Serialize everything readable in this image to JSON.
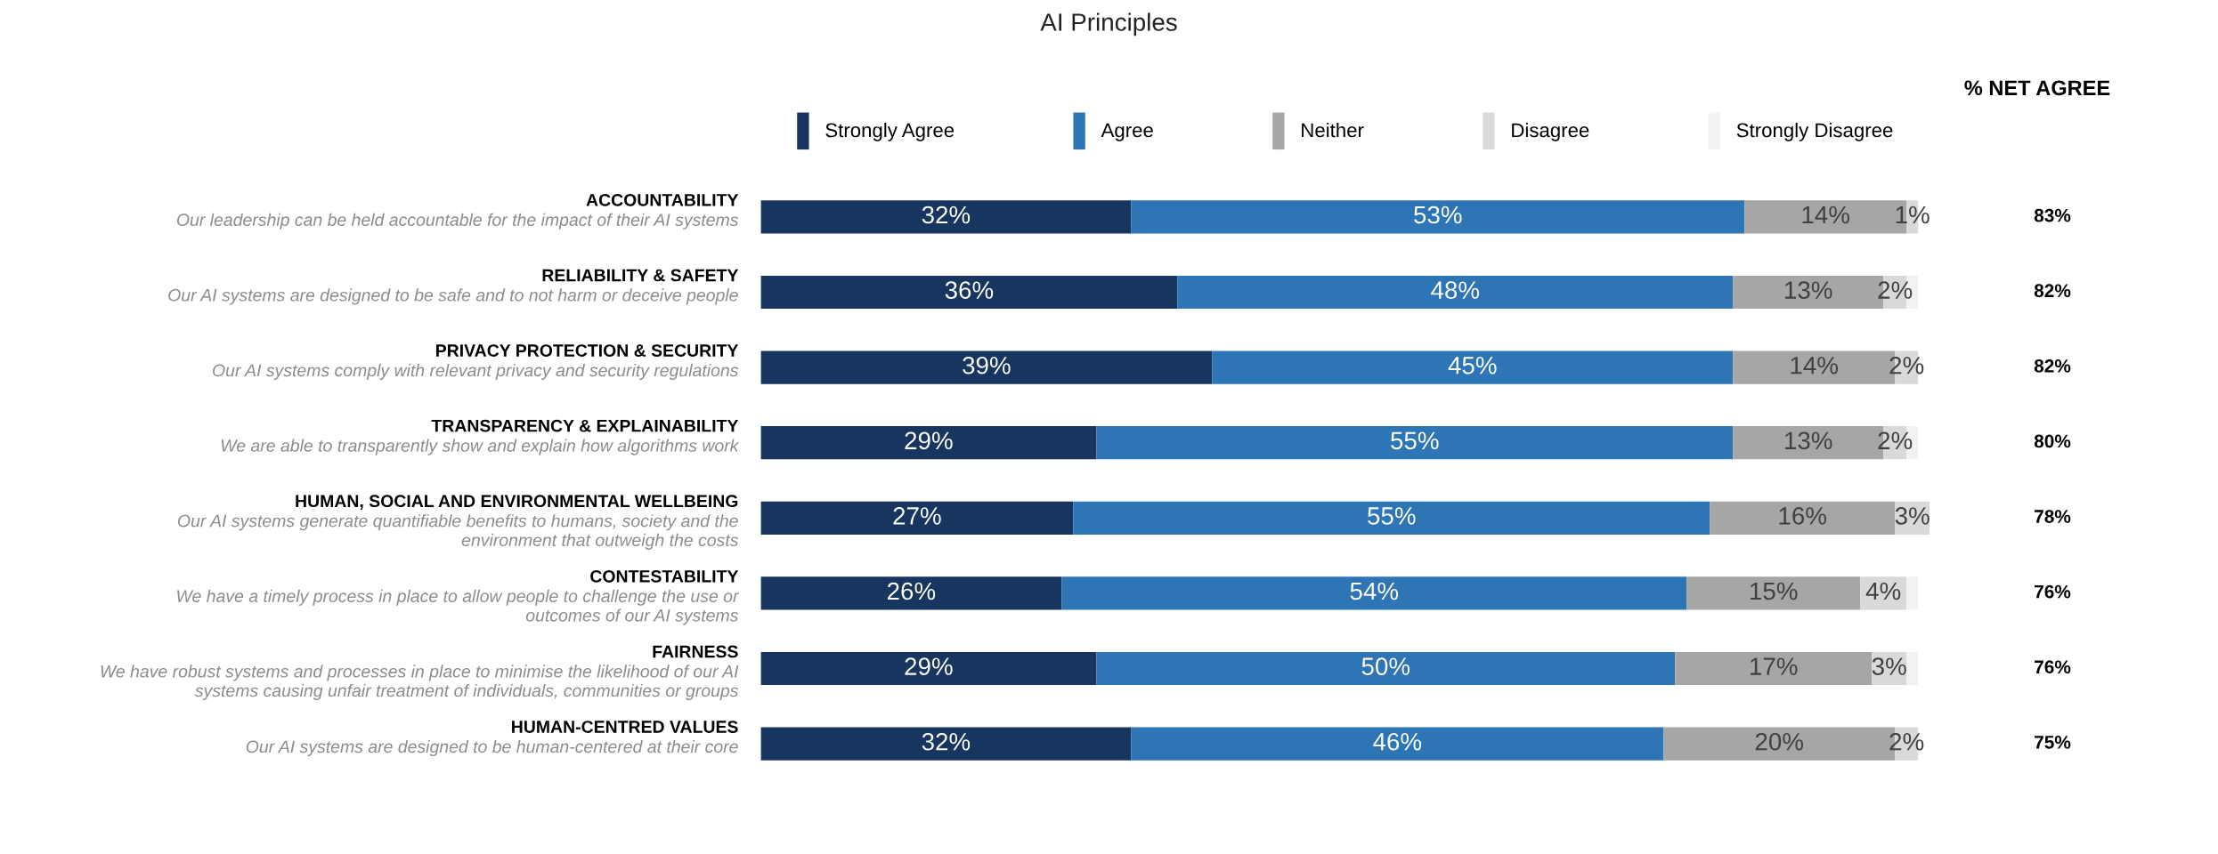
{
  "chart_data": {
    "type": "bar",
    "orientation": "horizontal",
    "stacked": true,
    "title": "AI Principles",
    "categories": [
      "ACCOUNTABILITY\nOur leadership can be held accountable for the impact of their AI systems",
      "RELIABILITY & SAFETY\nOur AI systems are designed to be safe and to not harm or deceive people",
      "PRIVACY PROTECTION & SECURITY\nOur AI systems comply with relevant privacy and security regulations",
      "TRANSPARENCY & EXPLAINABILITY\nWe are able to transparently show and explain how algorithms work",
      "HUMAN, SOCIAL AND ENVIRONMENTAL WELLBEING\nOur AI systems generate quantifiable benefits to humans, society and the\nenvironment that outweigh the costs",
      "CONTESTABILITY\nWe have a timely process in place to allow people to challenge the use or\noutcomes of our AI systems",
      "FAIRNESS\nWe have robust systems and processes in place to minimise the likelihood of our AI\nsystems causing unfair treatment of individuals, communities or groups",
      "HUMAN-CENTRED VALUES\nOur AI systems are designed to be human-centered at their core"
    ],
    "series": [
      {
        "name": "Strongly Agree",
        "color": "#17355e",
        "values": [
          32,
          36,
          39,
          29,
          27,
          26,
          29,
          32
        ],
        "value_labels": [
          "32%",
          "36%",
          "39%",
          "29%",
          "27%",
          "26%",
          "29%",
          "32%"
        ]
      },
      {
        "name": "Agree",
        "color": "#2e75b6",
        "values": [
          53,
          48,
          45,
          55,
          55,
          54,
          50,
          46
        ],
        "value_labels": [
          "53%",
          "48%",
          "45%",
          "55%",
          "55%",
          "54%",
          "50%",
          "46%"
        ]
      },
      {
        "name": "Neither",
        "color": "#a6a6a6",
        "values": [
          14,
          13,
          14,
          13,
          16,
          15,
          17,
          20
        ],
        "value_labels": [
          "14%",
          "13%",
          "14%",
          "13%",
          "16%",
          "15%",
          "17%",
          "20%"
        ]
      },
      {
        "name": "Disagree",
        "color": "#d9d9d9",
        "values": [
          1,
          2,
          2,
          2,
          3,
          4,
          3,
          2
        ],
        "value_labels": [
          "1%",
          "2%",
          "2%",
          "2%",
          "3%",
          "4%",
          "3%",
          "2%"
        ]
      },
      {
        "name": "Strongly Disagree",
        "color": "#f2f2f2",
        "values": [
          0,
          1,
          0,
          1,
          0,
          1,
          1,
          0
        ]
      }
    ],
    "annotations": [
      "% NET AGREE",
      "83%",
      "82%",
      "82%",
      "80%",
      "78%",
      "76%",
      "76%",
      "75%"
    ],
    "legend": "top"
  }
}
